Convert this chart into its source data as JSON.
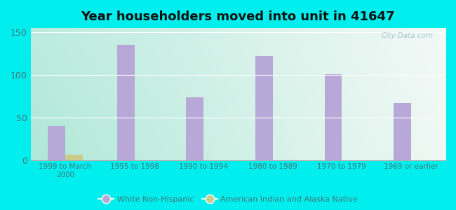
{
  "title": "Year householders moved into unit in 41647",
  "categories": [
    "1999 to March\n2000",
    "1995 to 1998",
    "1990 to 1994",
    "1980 to 1989",
    "1970 to 1979",
    "1969 or earlier"
  ],
  "white_non_hispanic": [
    40,
    135,
    74,
    122,
    101,
    67
  ],
  "american_indian": [
    6,
    0,
    0,
    0,
    0,
    0
  ],
  "bar_color_white": "#b8a8d8",
  "bar_color_indian": "#c8cc88",
  "background_outer": "#00eeee",
  "yticks": [
    0,
    50,
    100,
    150
  ],
  "ylim": [
    0,
    155
  ],
  "title_fontsize": 13,
  "watermark": "City-Data.com",
  "legend_label_white": "White Non-Hispanic",
  "legend_label_indian": "American Indian and Alaska Native",
  "grad_left": "#b0e8d8",
  "grad_right": "#eef8f0",
  "grad_top": "#ddeef8",
  "grid_color": "#dddddd"
}
